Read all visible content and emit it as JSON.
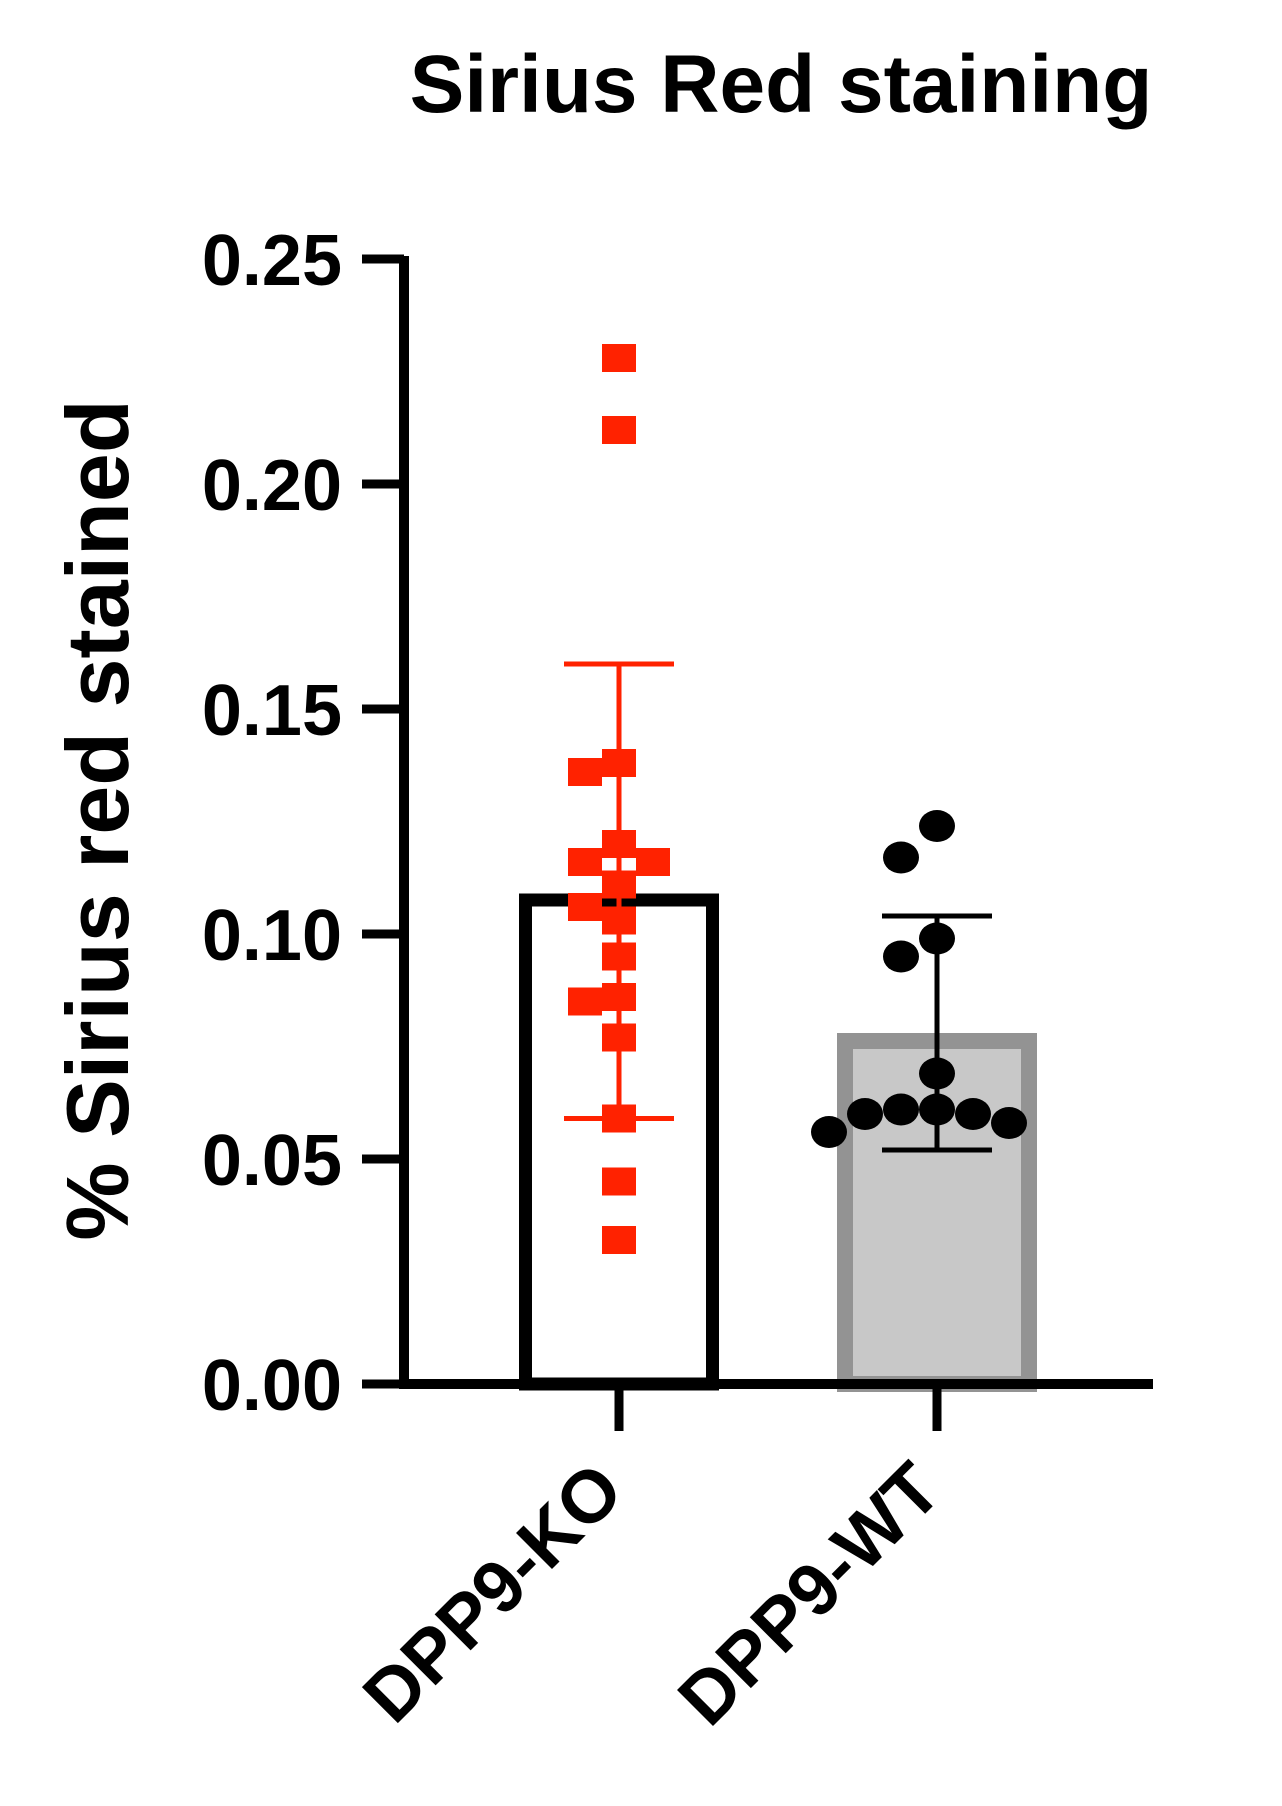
{
  "chart_data": {
    "type": "bar",
    "title": "Sirius Red staining",
    "xlabel": "",
    "ylabel": "% Sirius red stained",
    "ylim": [
      0,
      0.25
    ],
    "yticks": [
      "0.00",
      "0.05",
      "0.10",
      "0.15",
      "0.20",
      "0.25"
    ],
    "grid": false,
    "categories": [
      "DPP9-KO",
      "DPP9-WT"
    ],
    "series": [
      {
        "category": "DPP9-KO",
        "mean": 0.109,
        "error_low": 0.059,
        "error_high": 0.16,
        "bar_fill": "#ffffff",
        "bar_stroke": "#000000",
        "point_color": "#ff2200",
        "marker": "square",
        "points": [
          0.228,
          0.212,
          0.138,
          0.136,
          0.12,
          0.116,
          0.116,
          0.111,
          0.106,
          0.103,
          0.095,
          0.086,
          0.085,
          0.077,
          0.059,
          0.045,
          0.032
        ]
      },
      {
        "category": "DPP9-WT",
        "mean": 0.078,
        "error_low": 0.052,
        "error_high": 0.104,
        "bar_fill": "#c8c8c8",
        "bar_stroke": "#939393",
        "point_color": "#000000",
        "marker": "circle",
        "points": [
          0.124,
          0.117,
          0.099,
          0.095,
          0.069,
          0.061,
          0.061,
          0.06,
          0.06,
          0.058,
          0.056
        ]
      }
    ]
  }
}
